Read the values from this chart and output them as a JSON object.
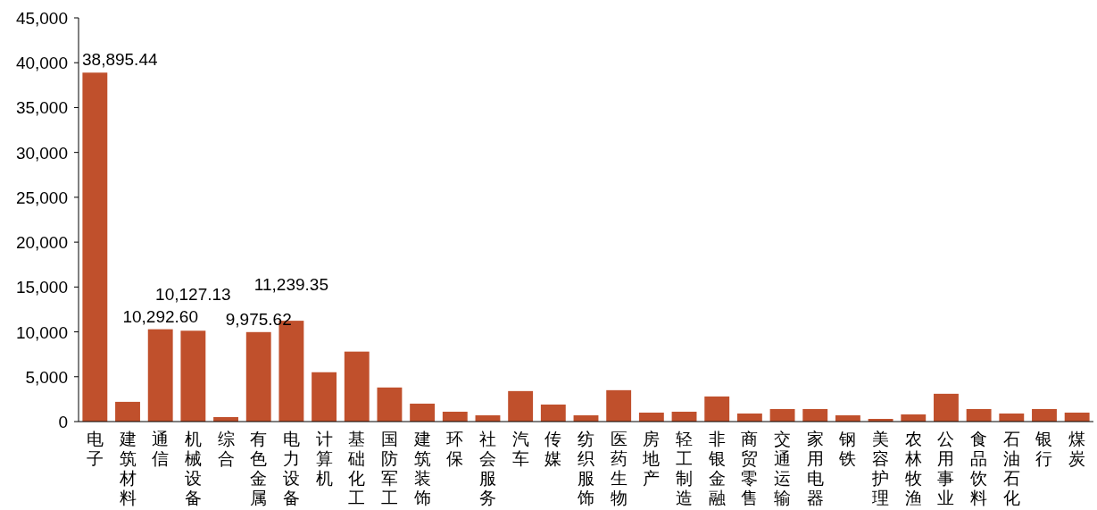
{
  "chart_data": {
    "type": "bar",
    "categories": [
      "电子",
      "建筑材料",
      "通信",
      "机械设备",
      "综合",
      "有色金属",
      "电力设备",
      "计算机",
      "基础化工",
      "国防军工",
      "建筑装饰",
      "环保",
      "社会服务",
      "汽车",
      "传媒",
      "纺织服饰",
      "医药生物",
      "房地产",
      "轻工制造",
      "非银金融",
      "商贸零售",
      "交通运输",
      "家用电器",
      "钢铁",
      "美容护理",
      "农林牧渔",
      "公用事业",
      "食品饮料",
      "石油石化",
      "银行",
      "煤炭"
    ],
    "values": [
      38895.44,
      2200,
      10292.6,
      10127.13,
      500,
      9975.62,
      11239.35,
      5500,
      7800,
      3800,
      2000,
      1100,
      700,
      3400,
      1900,
      700,
      3500,
      1000,
      1100,
      2800,
      900,
      1400,
      1400,
      700,
      300,
      800,
      3100,
      1400,
      900,
      1400,
      1000
    ],
    "value_labels": [
      "38,895.44",
      null,
      "10,292.60",
      "10,127.13",
      null,
      "9,975.62",
      "11,239.35",
      null,
      null,
      null,
      null,
      null,
      null,
      null,
      null,
      null,
      null,
      null,
      null,
      null,
      null,
      null,
      null,
      null,
      null,
      null,
      null,
      null,
      null,
      null,
      null
    ],
    "color": "#c0502c",
    "ylim": [
      0,
      45000
    ],
    "yticks": [
      {
        "value": 0,
        "label": "0"
      },
      {
        "value": 5000,
        "label": "5,000"
      },
      {
        "value": 10000,
        "label": "10,000"
      },
      {
        "value": 15000,
        "label": "15,000"
      },
      {
        "value": 20000,
        "label": "20,000"
      },
      {
        "value": 25000,
        "label": "25,000"
      },
      {
        "value": 30000,
        "label": "30,000"
      },
      {
        "value": 35000,
        "label": "35,000"
      },
      {
        "value": 40000,
        "label": "40,000"
      },
      {
        "value": 45000,
        "label": "45,000"
      }
    ],
    "grid": false
  }
}
